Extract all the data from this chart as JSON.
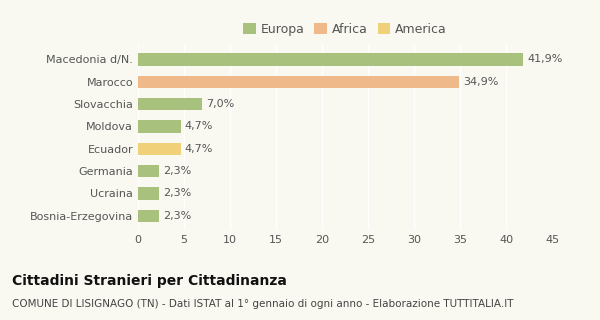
{
  "categories": [
    "Macedonia d/N.",
    "Marocco",
    "Slovacchia",
    "Moldova",
    "Ecuador",
    "Germania",
    "Ucraina",
    "Bosnia-Erzegovina"
  ],
  "values": [
    41.9,
    34.9,
    7.0,
    4.7,
    4.7,
    2.3,
    2.3,
    2.3
  ],
  "colors": [
    "#a8c17c",
    "#f0b98a",
    "#a8c17c",
    "#a8c17c",
    "#f0d078",
    "#a8c17c",
    "#a8c17c",
    "#a8c17c"
  ],
  "labels": [
    "41,9%",
    "34,9%",
    "7,0%",
    "4,7%",
    "4,7%",
    "2,3%",
    "2,3%",
    "2,3%"
  ],
  "legend_labels": [
    "Europa",
    "Africa",
    "America"
  ],
  "legend_colors": [
    "#a8c17c",
    "#f0b98a",
    "#f0d078"
  ],
  "xlim": [
    0,
    45
  ],
  "xticks": [
    0,
    5,
    10,
    15,
    20,
    25,
    30,
    35,
    40,
    45
  ],
  "title": "Cittadini Stranieri per Cittadinanza",
  "subtitle": "COMUNE DI LISIGNAGO (TN) - Dati ISTAT al 1° gennaio di ogni anno - Elaborazione TUTTITALIA.IT",
  "bg_color": "#f9f9f2",
  "title_fontsize": 10,
  "subtitle_fontsize": 7.5,
  "label_fontsize": 8,
  "tick_fontsize": 8,
  "legend_fontsize": 9,
  "bar_height": 0.55
}
